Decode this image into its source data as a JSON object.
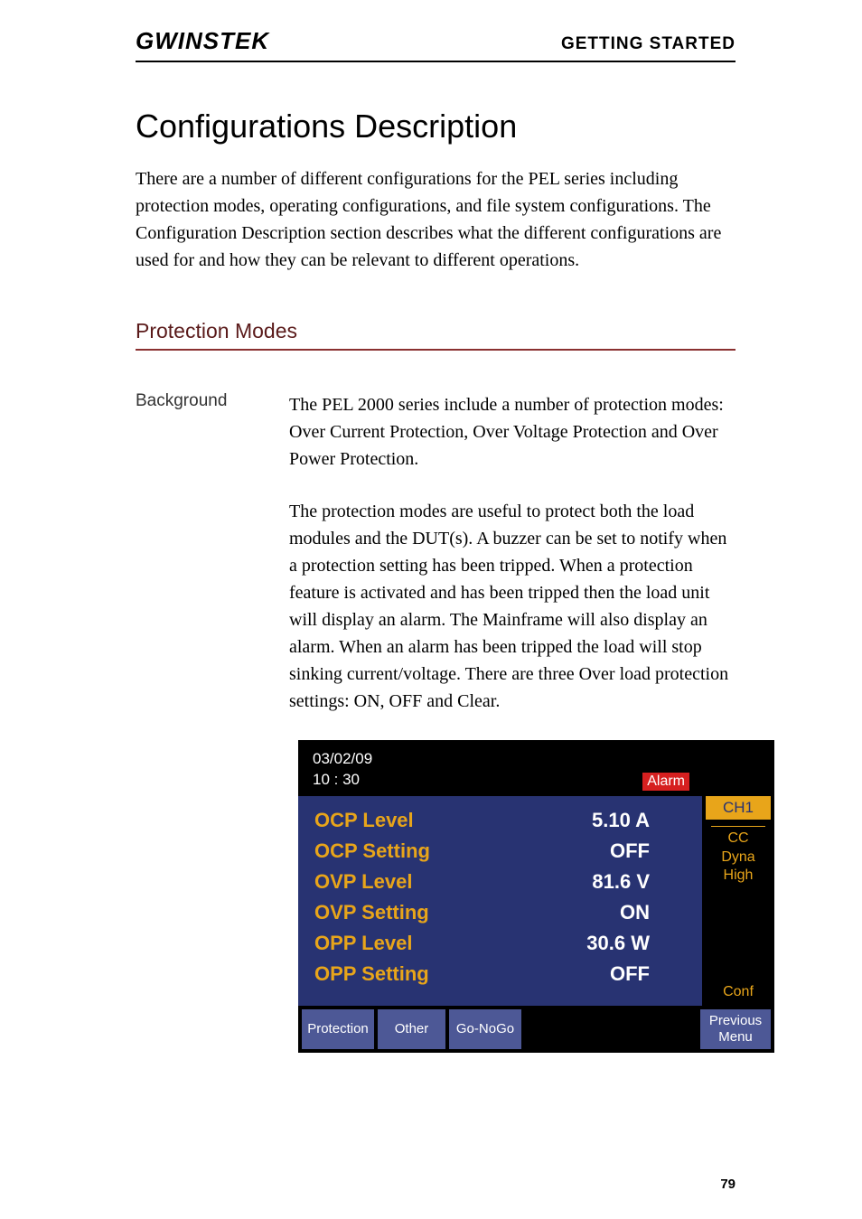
{
  "header": {
    "logo": "GWINSTEK",
    "section": "GETTING STARTED"
  },
  "title": "Configurations Description",
  "intro": "There are a number of different configurations for the PEL series including protection modes, operating configurations, and file system configurations. The Configuration Description section describes what the different configurations are used for and how they can be relevant to different operations.",
  "subsection": "Protection Modes",
  "background": {
    "label": "Background",
    "para1": "The PEL 2000 series include a number of protection modes: Over Current Protection, Over Voltage Protection and Over Power Protection.",
    "para2": "The protection modes are useful to protect both the load modules and the DUT(s).  A buzzer can be set to notify when a protection setting has been tripped.  When a protection feature is activated and has been tripped then the load unit will display an alarm. The Mainframe will also display an alarm. When an alarm has been tripped the load will stop sinking current/voltage. There are three Over load protection settings: ON, OFF and Clear."
  },
  "screen": {
    "date": "03/02/09",
    "time": "10 : 30",
    "alarm": "Alarm",
    "rows": [
      {
        "label": "OCP Level",
        "value": "5.10  A"
      },
      {
        "label": "OCP Setting",
        "value": "OFF"
      },
      {
        "label": "OVP Level",
        "value": "81.6  V"
      },
      {
        "label": "OVP Setting",
        "value": "ON"
      },
      {
        "label": "OPP Level",
        "value": "30.6  W"
      },
      {
        "label": "OPP Setting",
        "value": "OFF"
      }
    ],
    "side": {
      "ch": "CH1",
      "mode1": "CC",
      "mode2": "Dyna",
      "mode3": "High",
      "conf": "Conf"
    },
    "bottom": {
      "btn1": "Protection",
      "btn2": "Other",
      "btn3": "Go-NoGo",
      "btn4": "Previous Menu"
    },
    "colors": {
      "panel_bg": "#283372",
      "accent": "#e8a51a",
      "alarm_bg": "#d62020",
      "btn_bg": "#4d5896"
    }
  },
  "page_number": "79"
}
